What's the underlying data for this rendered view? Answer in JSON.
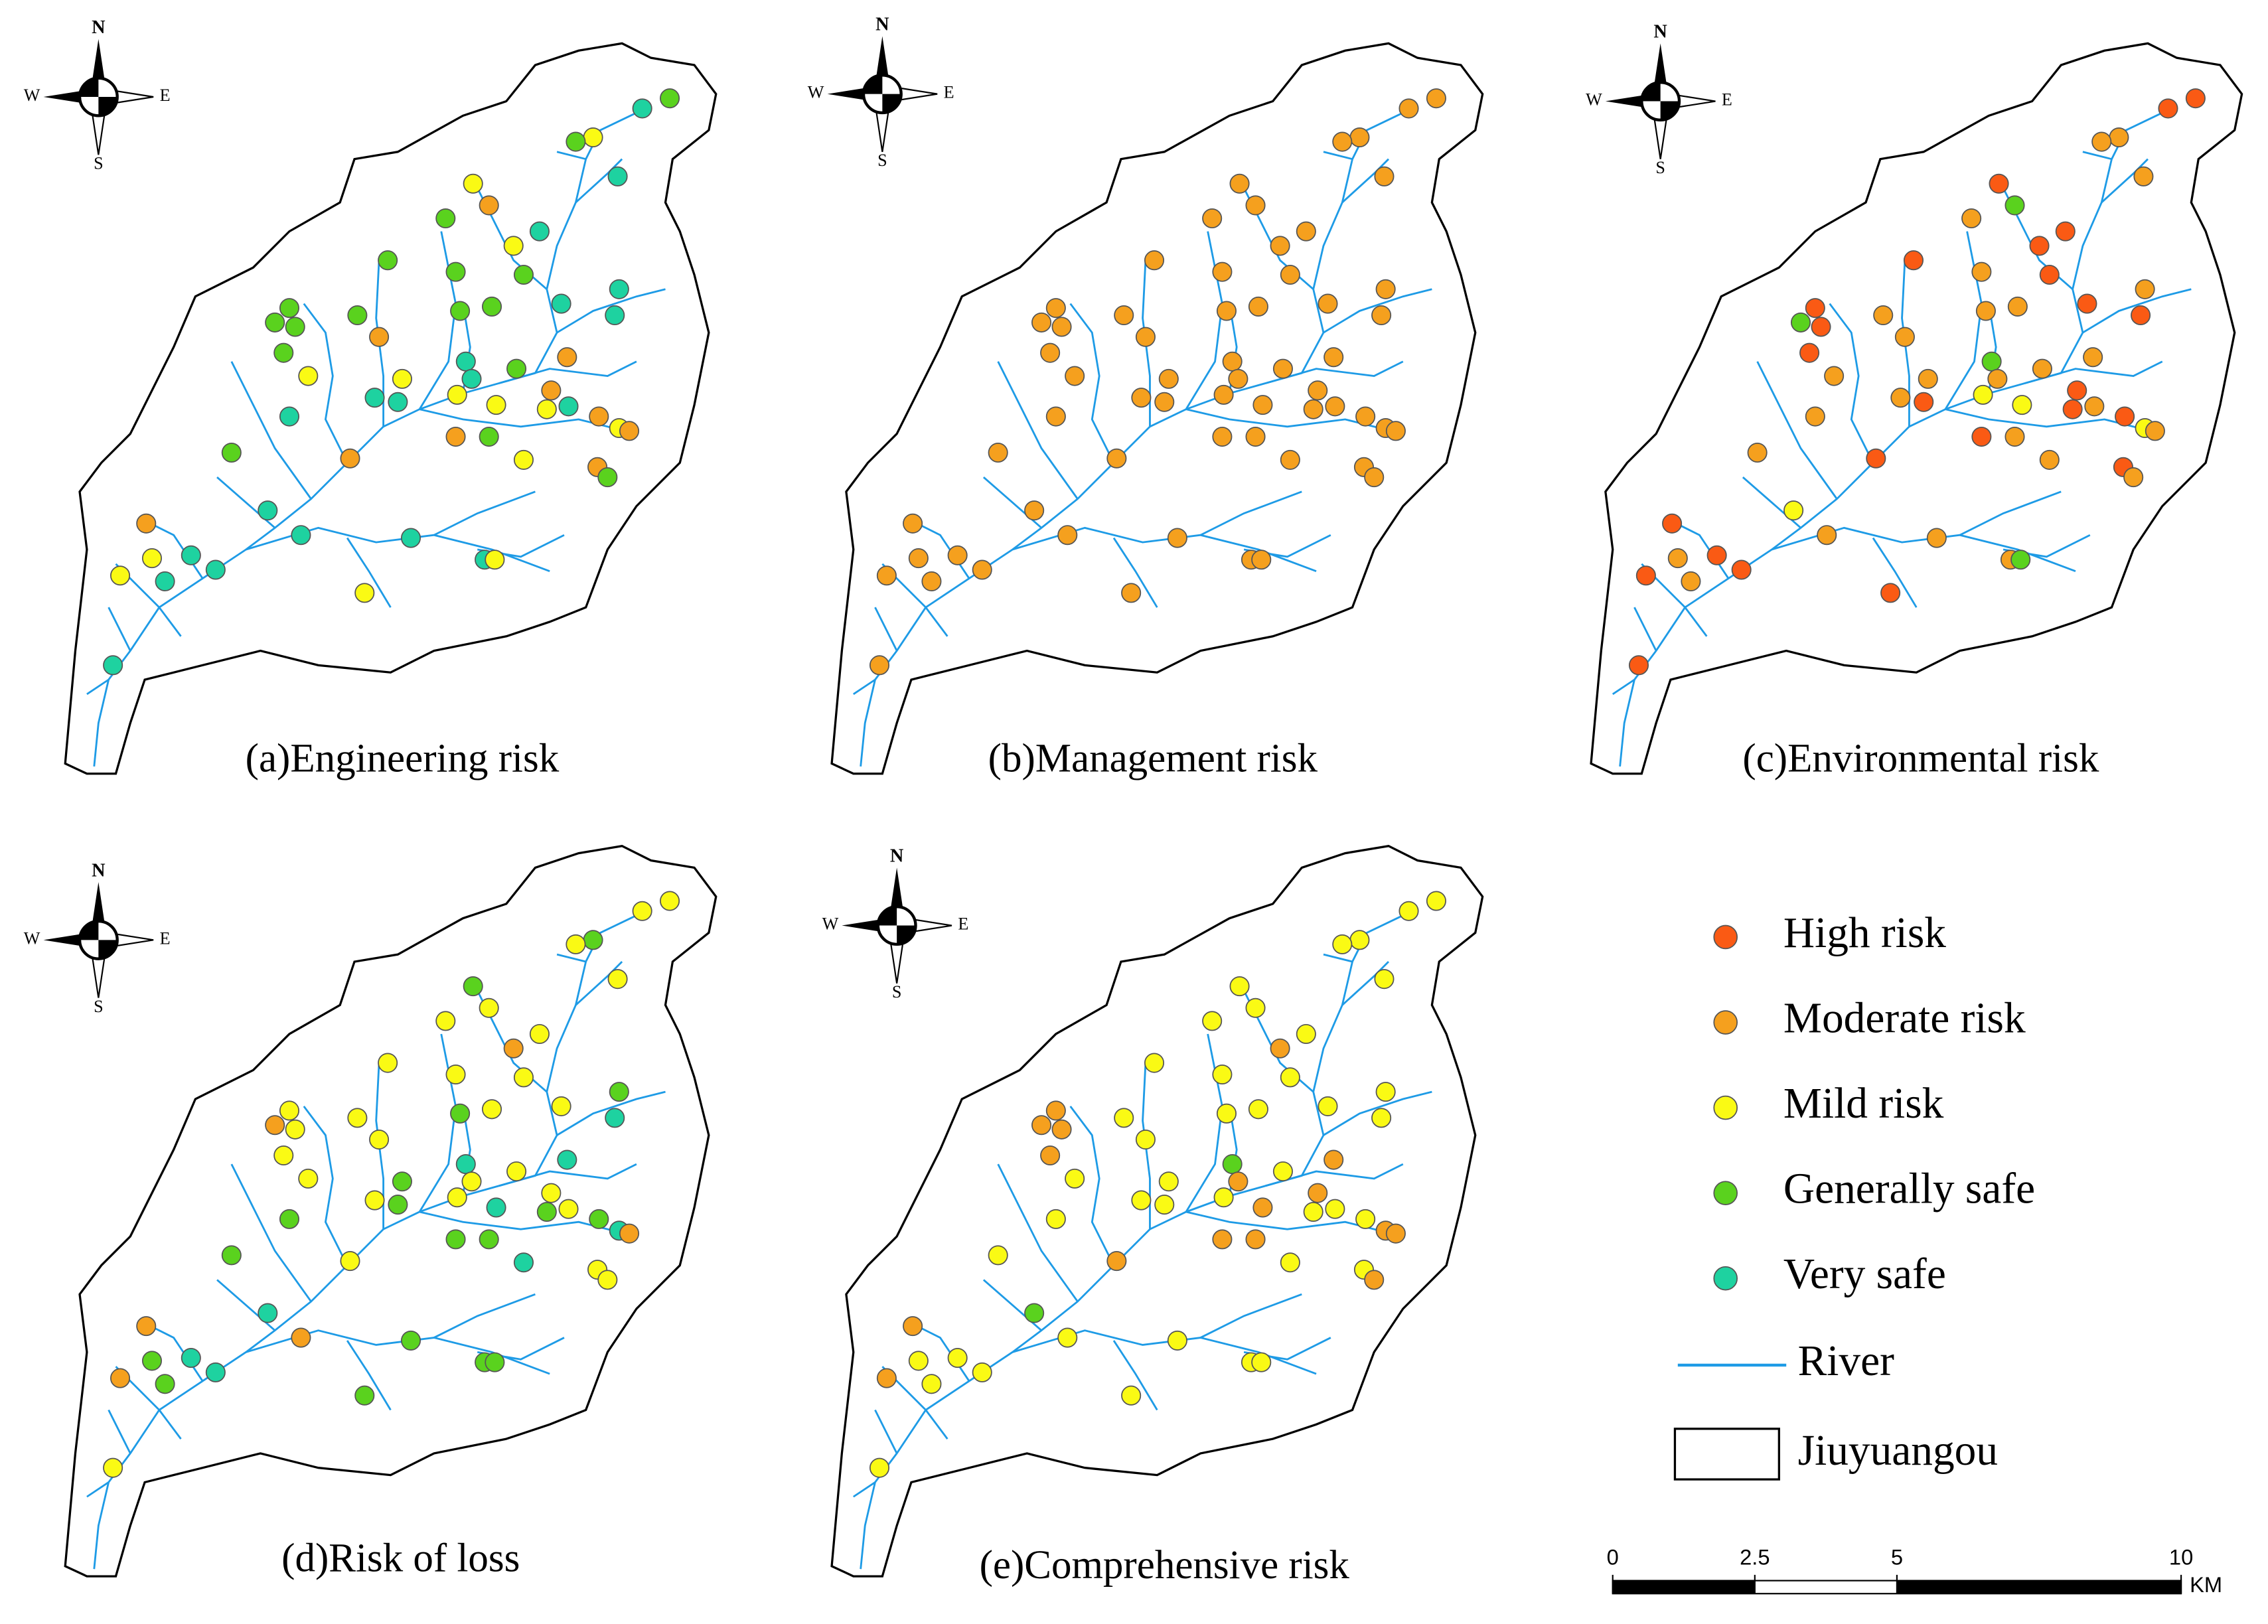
{
  "compass": {
    "north": "N",
    "south": "S",
    "west": "W",
    "east": "E"
  },
  "panels": [
    {
      "caption": "(a)Engineering risk",
      "levels": [
        4,
        5,
        3,
        4,
        5,
        3,
        2,
        4,
        5,
        3,
        4,
        4,
        4,
        5,
        5,
        4,
        4,
        4,
        4,
        4,
        4,
        5,
        2,
        4,
        5,
        4,
        2,
        5,
        3,
        3,
        5,
        5,
        3,
        3,
        2,
        3,
        5,
        2,
        3,
        2,
        5,
        2,
        4,
        2,
        4,
        3,
        2,
        4,
        5,
        2,
        5,
        5,
        5,
        5,
        3,
        3,
        3,
        5,
        5,
        3,
        5
      ]
    },
    {
      "caption": "(b)Management risk",
      "levels": [
        2,
        2,
        2,
        2,
        2,
        2,
        2,
        2,
        2,
        2,
        2,
        2,
        2,
        2,
        2,
        2,
        2,
        2,
        2,
        2,
        2,
        2,
        2,
        2,
        2,
        2,
        2,
        2,
        2,
        2,
        2,
        2,
        2,
        2,
        2,
        2,
        2,
        2,
        2,
        2,
        2,
        2,
        2,
        2,
        2,
        2,
        2,
        2,
        2,
        2,
        2,
        2,
        2,
        2,
        2,
        2,
        2,
        2,
        2,
        2,
        2
      ]
    },
    {
      "caption": "(c)Environmental risk",
      "levels": [
        1,
        1,
        2,
        2,
        2,
        1,
        4,
        2,
        1,
        1,
        1,
        2,
        1,
        2,
        1,
        2,
        2,
        1,
        4,
        1,
        2,
        1,
        2,
        1,
        4,
        2,
        2,
        2,
        2,
        2,
        2,
        1,
        3,
        3,
        1,
        1,
        2,
        1,
        3,
        2,
        2,
        1,
        2,
        1,
        2,
        2,
        1,
        2,
        3,
        1,
        2,
        2,
        1,
        2,
        4,
        2,
        1,
        2,
        1,
        1,
        1
      ]
    },
    {
      "caption": "(d)Risk of loss",
      "levels": [
        3,
        3,
        4,
        3,
        3,
        4,
        3,
        3,
        3,
        2,
        3,
        3,
        3,
        4,
        3,
        3,
        4,
        3,
        2,
        3,
        3,
        5,
        3,
        3,
        5,
        3,
        5,
        3,
        3,
        4,
        3,
        4,
        3,
        5,
        3,
        4,
        3,
        4,
        5,
        2,
        4,
        4,
        4,
        3,
        4,
        5,
        3,
        3,
        5,
        2,
        2,
        4,
        5,
        4,
        4,
        4,
        2,
        4,
        5,
        4,
        3
      ]
    },
    {
      "caption": "(e)Comprehensive risk",
      "levels": [
        3,
        3,
        3,
        3,
        3,
        3,
        3,
        3,
        3,
        2,
        3,
        3,
        3,
        3,
        3,
        3,
        3,
        2,
        2,
        2,
        3,
        3,
        3,
        2,
        4,
        3,
        2,
        2,
        3,
        3,
        3,
        3,
        3,
        2,
        2,
        3,
        3,
        3,
        2,
        2,
        3,
        2,
        2,
        2,
        3,
        3,
        3,
        2,
        4,
        2,
        3,
        3,
        3,
        3,
        3,
        3,
        2,
        3,
        3,
        3,
        3
      ]
    }
  ],
  "legend": {
    "classes": [
      {
        "label": "High risk",
        "color": "#fa5a14"
      },
      {
        "label": "Moderate risk",
        "color": "#f5a01e"
      },
      {
        "label": "Mild risk",
        "color": "#fafa14"
      },
      {
        "label": "Generally safe",
        "color": "#5ad21e"
      },
      {
        "label": "Very safe",
        "color": "#1ed2a0"
      }
    ],
    "river": {
      "label": "River",
      "color": "#1e9be6"
    },
    "area": {
      "label": "Jiuyuangou"
    }
  },
  "scale_bar": {
    "ticks": [
      0,
      2.5,
      5,
      10
    ],
    "unit": "KM"
  }
}
